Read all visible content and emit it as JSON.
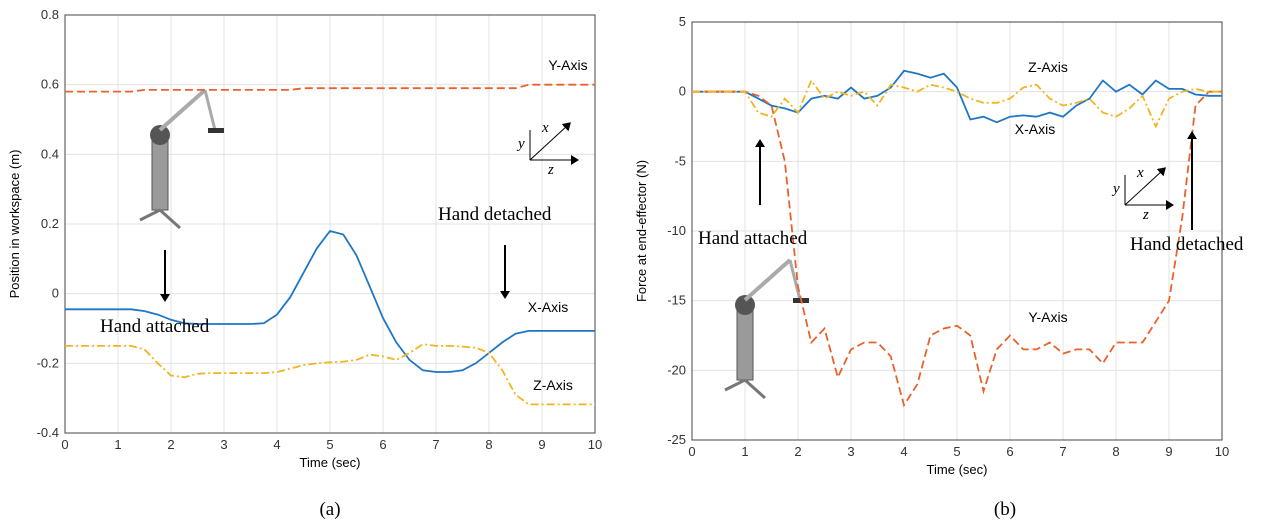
{
  "chart_data": [
    {
      "type": "line",
      "xlabel": "Time (sec)",
      "ylabel": "Position in workspace (m)",
      "x": [
        0,
        0.25,
        0.5,
        0.75,
        1,
        1.25,
        1.5,
        1.75,
        2,
        2.25,
        2.5,
        2.75,
        3,
        3.25,
        3.5,
        3.75,
        4,
        4.25,
        4.5,
        4.75,
        5,
        5.25,
        5.5,
        5.75,
        6,
        6.25,
        6.5,
        6.75,
        7,
        7.25,
        7.5,
        7.75,
        8,
        8.25,
        8.5,
        8.75,
        9,
        9.25,
        9.5,
        9.75,
        10
      ],
      "xlim": [
        0,
        10
      ],
      "xticks": [
        0,
        1,
        2,
        3,
        4,
        5,
        6,
        7,
        8,
        9,
        10
      ],
      "ylim": [
        -0.4,
        0.8
      ],
      "yticks": [
        -0.4,
        -0.2,
        0,
        0.2,
        0.4,
        0.6,
        0.8
      ],
      "grid": true,
      "series": [
        {
          "name": "X-Axis",
          "color": "#1f77c4",
          "style": "solid",
          "values": [
            -0.045,
            -0.045,
            -0.045,
            -0.045,
            -0.045,
            -0.045,
            -0.05,
            -0.06,
            -0.075,
            -0.085,
            -0.087,
            -0.087,
            -0.087,
            -0.087,
            -0.087,
            -0.085,
            -0.06,
            -0.01,
            0.06,
            0.13,
            0.18,
            0.17,
            0.11,
            0.02,
            -0.07,
            -0.14,
            -0.19,
            -0.22,
            -0.225,
            -0.225,
            -0.22,
            -0.2,
            -0.17,
            -0.14,
            -0.115,
            -0.107,
            -0.107,
            -0.107,
            -0.107,
            -0.107,
            -0.107
          ]
        },
        {
          "name": "Y-Axis",
          "color": "#e8622c",
          "style": "dashed",
          "values": [
            0.58,
            0.58,
            0.58,
            0.58,
            0.58,
            0.58,
            0.585,
            0.585,
            0.585,
            0.585,
            0.585,
            0.585,
            0.585,
            0.585,
            0.585,
            0.585,
            0.585,
            0.585,
            0.59,
            0.59,
            0.59,
            0.59,
            0.59,
            0.59,
            0.59,
            0.59,
            0.59,
            0.59,
            0.59,
            0.59,
            0.59,
            0.59,
            0.59,
            0.59,
            0.59,
            0.6,
            0.6,
            0.6,
            0.6,
            0.6,
            0.6
          ]
        },
        {
          "name": "Z-Axis",
          "color": "#f2b41f",
          "style": "dashdot",
          "values": [
            -0.15,
            -0.15,
            -0.15,
            -0.15,
            -0.15,
            -0.15,
            -0.16,
            -0.2,
            -0.235,
            -0.24,
            -0.23,
            -0.228,
            -0.228,
            -0.228,
            -0.228,
            -0.228,
            -0.225,
            -0.215,
            -0.205,
            -0.2,
            -0.197,
            -0.195,
            -0.19,
            -0.175,
            -0.18,
            -0.19,
            -0.17,
            -0.145,
            -0.15,
            -0.15,
            -0.152,
            -0.155,
            -0.17,
            -0.22,
            -0.29,
            -0.318,
            -0.318,
            -0.318,
            -0.318,
            -0.318,
            -0.318
          ]
        }
      ],
      "annotations": [
        "Hand attached",
        "Hand detached"
      ],
      "inset_labels": [
        "x",
        "y",
        "z"
      ],
      "caption": "(a)"
    },
    {
      "type": "line",
      "xlabel": "Time (sec)",
      "ylabel": "Force at end-effector (N)",
      "x": [
        0,
        0.25,
        0.5,
        0.75,
        1,
        1.25,
        1.5,
        1.75,
        2,
        2.25,
        2.5,
        2.75,
        3,
        3.25,
        3.5,
        3.75,
        4,
        4.25,
        4.5,
        4.75,
        5,
        5.25,
        5.5,
        5.75,
        6,
        6.25,
        6.5,
        6.75,
        7,
        7.25,
        7.5,
        7.75,
        8,
        8.25,
        8.5,
        8.75,
        9,
        9.25,
        9.5,
        9.75,
        10
      ],
      "xlim": [
        0,
        10
      ],
      "xticks": [
        0,
        1,
        2,
        3,
        4,
        5,
        6,
        7,
        8,
        9,
        10
      ],
      "ylim": [
        -25,
        5
      ],
      "yticks": [
        -25,
        -20,
        -15,
        -10,
        -5,
        0,
        5
      ],
      "grid": true,
      "series": [
        {
          "name": "X-Axis",
          "color": "#1f77c4",
          "style": "solid",
          "values": [
            0,
            0,
            0,
            0,
            0,
            -0.5,
            -1,
            -1.2,
            -1.5,
            -0.5,
            -0.3,
            -0.5,
            0.3,
            -0.5,
            -0.3,
            0.3,
            1.5,
            1.3,
            1.0,
            1.3,
            0.3,
            -2,
            -1.8,
            -2.2,
            -1.8,
            -1.7,
            -1.8,
            -1.5,
            -1.8,
            -1.0,
            -0.5,
            0.8,
            0,
            0.5,
            -0.2,
            0.8,
            0.2,
            0.2,
            -0.2,
            -0.3,
            -0.3
          ]
        },
        {
          "name": "Y-Axis",
          "color": "#e8622c",
          "style": "dashed",
          "values": [
            0,
            0,
            0,
            0,
            0,
            -0.3,
            -1,
            -5,
            -14,
            -18,
            -17,
            -20.5,
            -18.5,
            -18,
            -18,
            -19,
            -22.5,
            -21,
            -17.5,
            -17,
            -16.8,
            -17.5,
            -21.5,
            -18.5,
            -17.5,
            -18.5,
            -18.5,
            -18,
            -18.8,
            -18.5,
            -18.5,
            -19.5,
            -18,
            -18,
            -18,
            -16.5,
            -15,
            -9,
            -1,
            0,
            0
          ]
        },
        {
          "name": "Z-Axis",
          "color": "#f2b41f",
          "style": "dashdot",
          "values": [
            0,
            0,
            0,
            0,
            0,
            -1.5,
            -1.8,
            -0.5,
            -1.5,
            0.8,
            -0.5,
            0,
            -0.3,
            0,
            -1,
            0.5,
            0.3,
            0,
            0.5,
            0.3,
            0,
            -0.5,
            -0.8,
            -0.8,
            -0.5,
            0.3,
            0.5,
            -0.5,
            -1,
            -0.8,
            -0.5,
            -1.5,
            -1.8,
            -1.2,
            -0.3,
            -2.5,
            -0.5,
            0,
            0.2,
            0,
            0
          ]
        }
      ],
      "annotations": [
        "Hand attached",
        "Hand detached"
      ],
      "inset_labels": [
        "x",
        "y",
        "z"
      ],
      "caption": "(b)"
    }
  ]
}
